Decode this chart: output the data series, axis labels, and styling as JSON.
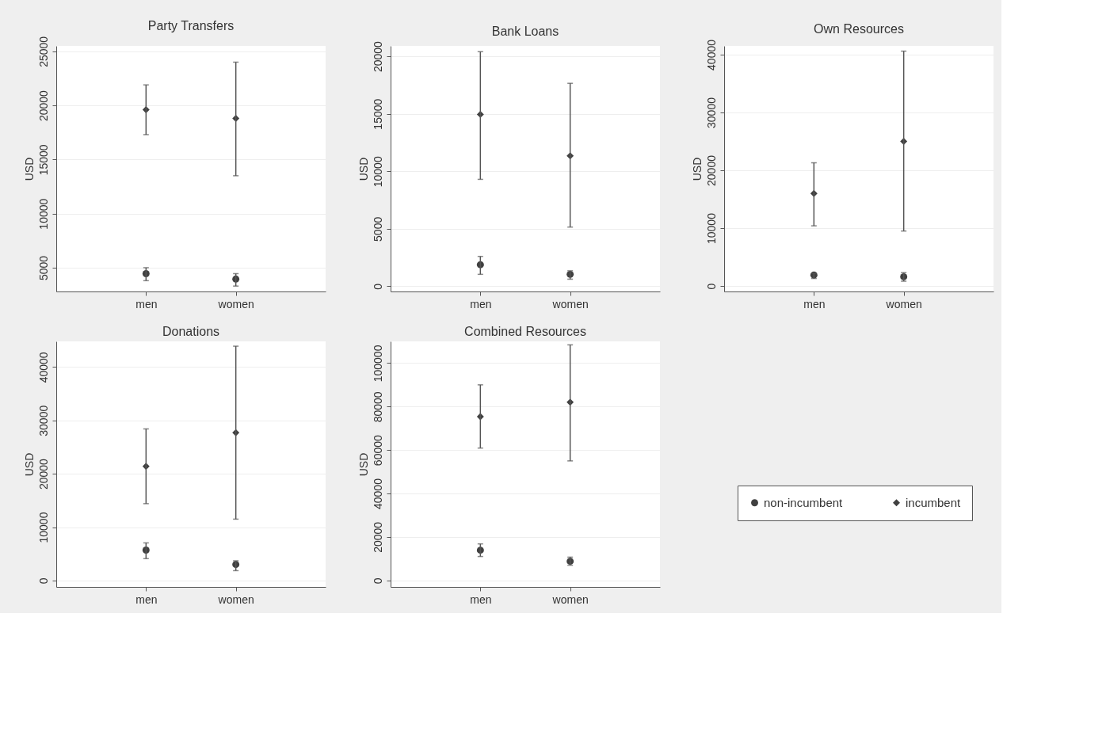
{
  "chart_data": [
    {
      "type": "scatter",
      "title": "Party Transfers",
      "ylabel": "USD",
      "categories": [
        "men",
        "women"
      ],
      "ylim": [
        2800,
        25500
      ],
      "yticks": [
        5000,
        10000,
        15000,
        20000,
        25000
      ],
      "grid": "y",
      "legend": "bottom right",
      "series": [
        {
          "name": "non-incumbent",
          "color": "#404040",
          "marker": "circle",
          "values": [
            4450,
            3950
          ],
          "errors": [
            [
              3800,
              5000
            ],
            [
              3300,
              4450
            ]
          ]
        },
        {
          "name": "incumbent",
          "color": "#404040",
          "marker": "diamond",
          "values": [
            19600,
            18800
          ],
          "errors": [
            [
              17300,
              21900
            ],
            [
              13500,
              24000
            ]
          ]
        }
      ]
    },
    {
      "type": "scatter",
      "title": "Bank Loans",
      "ylabel": "USD",
      "categories": [
        "men",
        "women"
      ],
      "ylim": [
        -450,
        20900
      ],
      "yticks": [
        0,
        5000,
        10000,
        15000,
        20000
      ],
      "grid": "y",
      "legend": "bottom right",
      "series": [
        {
          "name": "non-incumbent",
          "color": "#404040",
          "marker": "circle",
          "values": [
            1880,
            1040
          ],
          "errors": [
            [
              1040,
              2600
            ],
            [
              620,
              1350
            ]
          ]
        },
        {
          "name": "incumbent",
          "color": "#404040",
          "marker": "diamond",
          "values": [
            14950,
            11350
          ],
          "errors": [
            [
              9300,
              20400
            ],
            [
              5150,
              17650
            ]
          ]
        }
      ]
    },
    {
      "type": "scatter",
      "title": "Own Resources",
      "ylabel": "USD",
      "categories": [
        "men",
        "women"
      ],
      "ylim": [
        -950,
        41500
      ],
      "yticks": [
        0,
        10000,
        20000,
        30000,
        40000
      ],
      "grid": "y",
      "legend": "bottom right",
      "series": [
        {
          "name": "non-incumbent",
          "color": "#404040",
          "marker": "circle",
          "values": [
            1900,
            1600
          ],
          "errors": [
            [
              1300,
              2200
            ],
            [
              830,
              2300
            ]
          ]
        },
        {
          "name": "incumbent",
          "color": "#404040",
          "marker": "diamond",
          "values": [
            16000,
            25000
          ],
          "errors": [
            [
              10400,
              21300
            ],
            [
              9500,
              40600
            ]
          ]
        }
      ]
    },
    {
      "type": "scatter",
      "title": "Donations",
      "ylabel": "USD",
      "categories": [
        "men",
        "women"
      ],
      "ylim": [
        -1200,
        44800
      ],
      "yticks": [
        0,
        10000,
        20000,
        30000,
        40000
      ],
      "grid": "y",
      "legend": "bottom right",
      "series": [
        {
          "name": "non-incumbent",
          "color": "#404040",
          "marker": "circle",
          "values": [
            5700,
            3000
          ],
          "errors": [
            [
              4100,
              7050
            ],
            [
              1850,
              3700
            ]
          ]
        },
        {
          "name": "incumbent",
          "color": "#404040",
          "marker": "diamond",
          "values": [
            21400,
            27700
          ],
          "errors": [
            [
              14400,
              28400
            ],
            [
              11500,
              43900
            ]
          ]
        }
      ]
    },
    {
      "type": "scatter",
      "title": "Combined Resources",
      "ylabel": "USD",
      "categories": [
        "men",
        "women"
      ],
      "ylim": [
        -3000,
        110000
      ],
      "yticks": [
        0,
        20000,
        40000,
        60000,
        80000,
        100000
      ],
      "grid": "y",
      "legend": "bottom right",
      "series": [
        {
          "name": "non-incumbent",
          "color": "#404040",
          "marker": "circle",
          "values": [
            13900,
            8800
          ],
          "errors": [
            [
              11000,
              16800
            ],
            [
              7000,
              10700
            ]
          ]
        },
        {
          "name": "incumbent",
          "color": "#404040",
          "marker": "diamond",
          "values": [
            75400,
            82000
          ],
          "errors": [
            [
              60900,
              90000
            ],
            [
              55000,
              108400
            ]
          ]
        }
      ]
    }
  ]
}
